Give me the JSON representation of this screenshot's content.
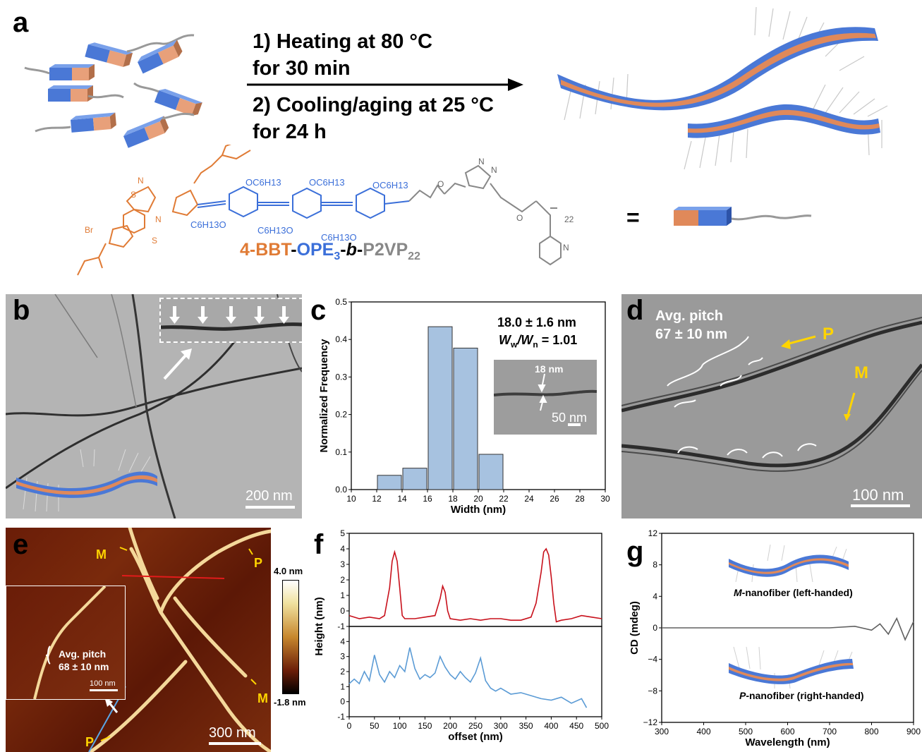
{
  "panel_a": {
    "label": "a",
    "step1_line1": "1) Heating at 80 °C",
    "step1_line2": "for 30 min",
    "step2_line1": "2) Cooling/aging at 25 °C",
    "step2_line2": "for 24 h",
    "equals": "=",
    "compound": {
      "part1": "4-BBT",
      "sep1": "-",
      "part2": "OPE",
      "part2_sub": "3",
      "sep2": "-",
      "part3": "b",
      "sep3": "-",
      "part4": "P2VP",
      "part4_sub": "22"
    },
    "structure_labels": [
      "OC6H13",
      "OC6H13",
      "OC6H13",
      "C6H13O",
      "C6H13O",
      "C6H13O",
      "Br",
      "N",
      "S",
      "N",
      "N",
      "N",
      "S",
      "N",
      "S",
      "S",
      "O",
      "O",
      "N",
      "N",
      "N",
      "O",
      "O",
      "N",
      "22"
    ],
    "colors": {
      "bbt": "#e07b35",
      "ope": "#3b6fd9",
      "p2vp": "#888888"
    }
  },
  "panel_b": {
    "label": "b",
    "scale": "200 nm"
  },
  "panel_c": {
    "label": "c",
    "annotation1": "18.0 ± 1.6 nm",
    "annotation2_pre": "W",
    "annotation2_sub1": "w",
    "annotation2_mid": "/W",
    "annotation2_sub2": "n",
    "annotation2_post": " = 1.01",
    "inset_label": "18 nm",
    "inset_scale": "50 nm"
  },
  "panel_d": {
    "label": "d",
    "pitch_line1": "Avg.  pitch",
    "pitch_line2": "67 ± 10 nm",
    "p_label": "P",
    "m_label": "M",
    "scale": "100 nm"
  },
  "panel_e": {
    "label": "e",
    "m1": "M",
    "p1": "P",
    "m2": "M",
    "p2": "P",
    "inset_pitch1": "Avg.  pitch",
    "inset_pitch2": "68 ± 10 nm",
    "inset_scale": "100 nm",
    "scale": "300 nm",
    "colorbar_max": "4.0 nm",
    "colorbar_min": "-1.8 nm"
  },
  "panel_f": {
    "label": "f"
  },
  "panel_g": {
    "label": "g",
    "m_caption_italic": "M",
    "m_caption_rest": "-nanofiber (left-handed)",
    "p_caption_italic": "P",
    "p_caption_rest": "-nanofiber (right-handed)"
  },
  "chart_data": [
    {
      "type": "bar",
      "categories": [
        "12-14",
        "14-16",
        "16-18",
        "18-20",
        "20-22"
      ],
      "bin_edges": [
        12,
        14,
        16,
        18,
        20,
        22
      ],
      "values": [
        0.038,
        0.057,
        0.434,
        0.377,
        0.094
      ],
      "xlabel": "Width (nm)",
      "ylabel": "Normalized Frequency",
      "xlim": [
        10,
        30
      ],
      "ylim": [
        0,
        0.5
      ],
      "xticks": [
        10,
        12,
        14,
        16,
        18,
        20,
        22,
        24,
        26,
        28,
        30
      ],
      "yticks": [
        0.0,
        0.1,
        0.2,
        0.3,
        0.4,
        0.5
      ],
      "color": "#a7c2e0"
    },
    {
      "type": "line",
      "xlabel": "offset (nm)",
      "ylabel": "Height (nm)",
      "xlim": [
        0,
        500
      ],
      "xticks": [
        0,
        50,
        100,
        150,
        200,
        250,
        300,
        350,
        400,
        450,
        500
      ],
      "series": [
        {
          "color": "#c8101b",
          "ylim": [
            -1,
            5
          ],
          "yticks": [
            -1,
            0,
            1,
            2,
            3,
            4,
            5
          ],
          "x": [
            0,
            20,
            40,
            60,
            70,
            80,
            85,
            90,
            95,
            100,
            105,
            110,
            130,
            150,
            170,
            180,
            185,
            190,
            195,
            200,
            220,
            240,
            260,
            280,
            300,
            320,
            340,
            360,
            370,
            380,
            385,
            390,
            395,
            400,
            405,
            410,
            420,
            440,
            460,
            480,
            500
          ],
          "y": [
            -0.3,
            -0.5,
            -0.4,
            -0.5,
            -0.3,
            1.5,
            3.2,
            3.8,
            3.2,
            1.5,
            -0.3,
            -0.5,
            -0.5,
            -0.4,
            -0.3,
            0.8,
            1.6,
            1.2,
            0.0,
            -0.5,
            -0.6,
            -0.5,
            -0.6,
            -0.5,
            -0.5,
            -0.6,
            -0.6,
            -0.4,
            0.5,
            2.5,
            3.8,
            4.0,
            3.6,
            2.2,
            0.5,
            -0.7,
            -0.6,
            -0.5,
            -0.3,
            -0.4,
            -0.5
          ]
        },
        {
          "color": "#5b9bd5",
          "ylim": [
            -1,
            5
          ],
          "yticks": [
            -1,
            0,
            1,
            2,
            3,
            4
          ],
          "x": [
            0,
            10,
            20,
            30,
            40,
            50,
            60,
            70,
            80,
            90,
            100,
            110,
            120,
            130,
            140,
            150,
            160,
            170,
            180,
            190,
            200,
            210,
            220,
            230,
            240,
            250,
            260,
            270,
            280,
            290,
            300,
            320,
            340,
            360,
            380,
            400,
            420,
            440,
            460,
            470
          ],
          "y": [
            1.2,
            1.5,
            1.2,
            2.0,
            1.4,
            3.1,
            1.8,
            1.3,
            2.0,
            1.6,
            2.4,
            2.0,
            3.6,
            2.2,
            1.5,
            1.8,
            1.6,
            1.9,
            3.0,
            2.3,
            1.8,
            1.5,
            2.0,
            1.6,
            1.3,
            1.9,
            2.9,
            1.4,
            0.9,
            0.7,
            0.9,
            0.5,
            0.6,
            0.4,
            0.2,
            0.1,
            0.3,
            -0.1,
            0.2,
            -0.4
          ]
        }
      ]
    },
    {
      "type": "line",
      "xlabel": "Wavelength (nm)",
      "ylabel": "CD (mdeg)",
      "xlim": [
        300,
        900
      ],
      "ylim": [
        -12,
        12
      ],
      "xticks": [
        300,
        400,
        500,
        600,
        700,
        800,
        900
      ],
      "yticks": [
        -12,
        -8,
        -4,
        0,
        4,
        8,
        12
      ],
      "series": [
        {
          "color": "#606060",
          "x": [
            300,
            400,
            500,
            600,
            700,
            760,
            800,
            820,
            840,
            860,
            880,
            900
          ],
          "y": [
            0,
            0,
            0,
            0,
            0,
            0.2,
            -0.3,
            0.5,
            -0.8,
            1.2,
            -1.5,
            0.8
          ]
        }
      ]
    }
  ]
}
